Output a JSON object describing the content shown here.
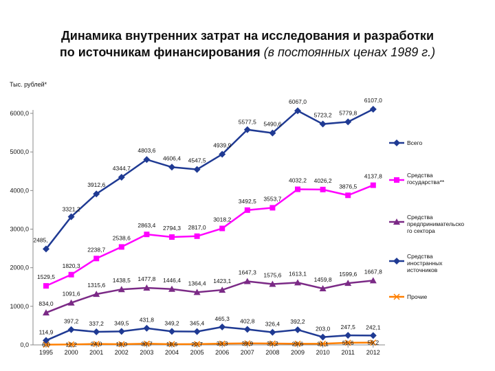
{
  "title_line1": "Динамика внутренних затрат на исследования и разработки",
  "title_line2": "по источникам финансирования",
  "title_line2_italic": "(в постоянных ценах 1989 г.)",
  "chart_data": {
    "type": "line",
    "title": "Динамика внутренних затрат на исследования и разработки по источникам финансирования (в постоянных ценах 1989 г.)",
    "ylabel": "Тыс. рублей*",
    "xlabel": "",
    "x": [
      "1995",
      "2000",
      "2001",
      "2002",
      "2003",
      "2004",
      "2005",
      "2006",
      "2007",
      "2008",
      "2009",
      "2010",
      "2011",
      "2012"
    ],
    "ylim": [
      0,
      6000
    ],
    "yticks": [
      0,
      1000,
      2000,
      3000,
      4000,
      5000,
      6000
    ],
    "ytick_labels": [
      "0,0",
      "1000,0",
      "2000,0",
      "3000,0",
      "4000,0",
      "5000,0",
      "6000,0"
    ],
    "grid": false,
    "legend_position": "right",
    "series": [
      {
        "name": "Всего",
        "color": "#1f3a93",
        "marker": "diamond",
        "values": [
          2485.0,
          3321.2,
          3912.6,
          4344.7,
          4803.6,
          4606.4,
          4547.5,
          4939.9,
          5577.5,
          5490.6,
          6067.0,
          5723.2,
          5779.8,
          6107.0
        ],
        "labels": [
          "2485,",
          "3321,2",
          "3912,6",
          "4344,7",
          "4803,6",
          "4606,4",
          "4547,5",
          "4939,9",
          "5577,5",
          "5490,6",
          "6067,0",
          "5723,2",
          "5779,8",
          "6107,0"
        ]
      },
      {
        "name": "Средства государства**",
        "color": "#ff00ff",
        "marker": "square",
        "values": [
          1529.5,
          1820.3,
          2238.7,
          2538.6,
          2863.4,
          2794.3,
          2817.0,
          3018.2,
          3492.5,
          3553.7,
          4032.2,
          4026.2,
          3876.5,
          4137.8
        ],
        "labels": [
          "1529,5",
          "1820,3",
          "2238,7",
          "2538,6",
          "2863,4",
          "2794,3",
          "2817,0",
          "3018,2",
          "3492,5",
          "3553,7",
          "4032,2",
          "4026,2",
          "3876,5",
          "4137,8"
        ]
      },
      {
        "name": "Средства предпринимательского сектора",
        "color": "#7b2a86",
        "marker": "triangle",
        "values": [
          834.0,
          1091.6,
          1315.6,
          1438.5,
          1477.8,
          1446.4,
          1364.4,
          1423.1,
          1647.3,
          1575.6,
          1613.1,
          1459.8,
          1599.6,
          1667.8
        ],
        "labels": [
          "834,0",
          "1091,6",
          "1315,6",
          "1438,5",
          "1477,8",
          "1446,4",
          "1364,4",
          "1423,1",
          "1647,3",
          "1575,6",
          "1613,1",
          "1459,8",
          "1599,6",
          "1667,8"
        ]
      },
      {
        "name": "Средства иностранных источников",
        "color": "#1f3a93",
        "marker": "diamond",
        "values": [
          114.9,
          397.2,
          337.2,
          349.5,
          431.8,
          349.2,
          345.4,
          465.3,
          402.8,
          326.4,
          392.2,
          203.0,
          247.5,
          242.1
        ],
        "labels": [
          "114,9",
          "397,2",
          "337,2",
          "349,5",
          "431,8",
          "349,2",
          "345,4",
          "465,3",
          "402,8",
          "326,4",
          "392,2",
          "203,0",
          "247,5",
          "242,1"
        ]
      },
      {
        "name": "Прочие",
        "color": "#ff7f00",
        "marker": "x",
        "values": [
          6.0,
          12.2,
          24.0,
          18.0,
          30.7,
          18.6,
          20.7,
          33.3,
          39.9,
          35.2,
          29.6,
          31.1,
          55.6,
          59.2
        ],
        "labels": [
          "6,0",
          "12,2",
          "24,0",
          "18,0",
          "30,7",
          "18,6",
          "20,7",
          "33,3",
          "39,9",
          "35,2",
          "29,6",
          "31,1",
          "55,6",
          "59,2"
        ]
      }
    ],
    "legend_labels": [
      [
        "Всего"
      ],
      [
        "Средства",
        "государства**"
      ],
      [
        "Средства",
        "предпринимательско",
        "го сектора"
      ],
      [
        "Средства",
        "иностранных",
        "источников"
      ],
      [
        "Прочие"
      ]
    ]
  }
}
